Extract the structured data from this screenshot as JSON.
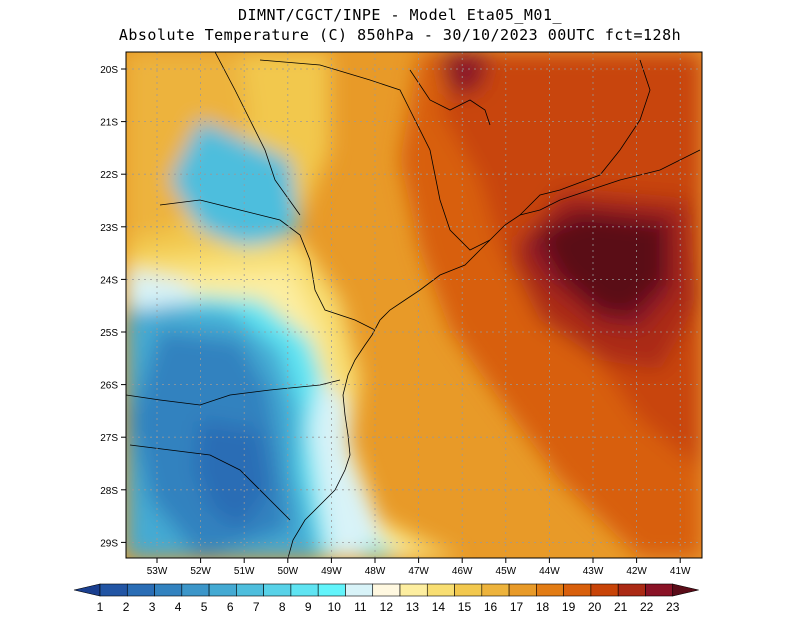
{
  "title_line1": "DIMNT/CGCT/INPE  -  Model Eta05_M01_",
  "title_line2": "Absolute Temperature (C) 850hPa -  30/10/2023 00UTC fct=128h",
  "lat_ticks": [
    "20S",
    "21S",
    "22S",
    "23S",
    "24S",
    "25S",
    "26S",
    "27S",
    "28S",
    "29S"
  ],
  "lon_ticks": [
    "53W",
    "52W",
    "51W",
    "50W",
    "49W",
    "48W",
    "47W",
    "46W",
    "45W",
    "44W",
    "43W",
    "42W",
    "41W"
  ],
  "colorbar": {
    "labels": [
      "1",
      "2",
      "3",
      "4",
      "5",
      "6",
      "7",
      "8",
      "9",
      "10",
      "11",
      "12",
      "13",
      "14",
      "15",
      "16",
      "17",
      "18",
      "19",
      "20",
      "21",
      "22",
      "23"
    ],
    "colors": [
      "#1a3f8f",
      "#2255a4",
      "#2a6db5",
      "#3282bf",
      "#3c96c9",
      "#44aad3",
      "#4ebedd",
      "#58d2e8",
      "#5fe4f2",
      "#62f4fb",
      "#d8f3f8",
      "#fff8e0",
      "#fdeea0",
      "#f8de72",
      "#f2c84e",
      "#edb33c",
      "#e89a28",
      "#e27c14",
      "#d85f0c",
      "#c84408",
      "#ab2a14",
      "#8a1226",
      "#5a0c18"
    ]
  }
}
